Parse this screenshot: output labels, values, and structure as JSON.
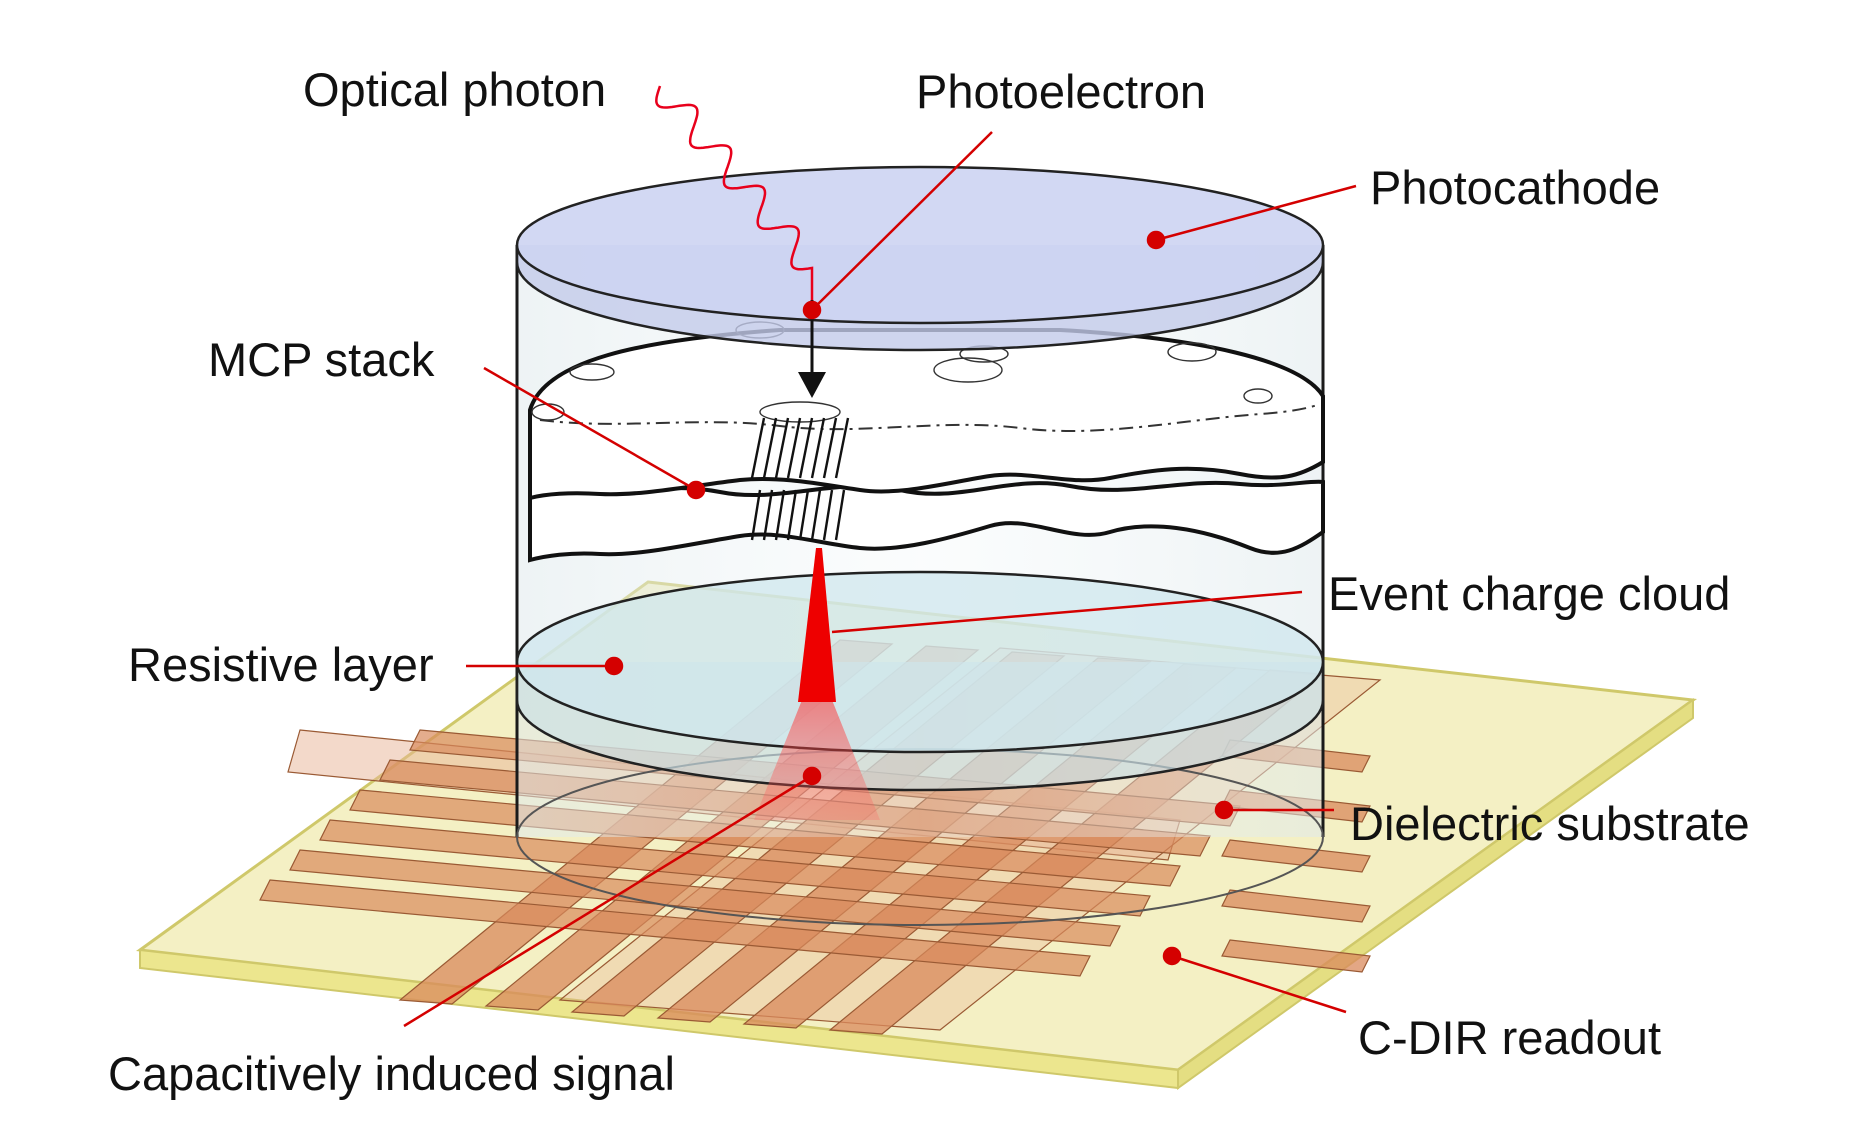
{
  "diagram": {
    "labels": {
      "optical_photon": "Optical photon",
      "photoelectron": "Photoelectron",
      "photocathode": "Photocathode",
      "mcp_stack": "MCP stack",
      "event_charge_cloud": "Event charge cloud",
      "resistive_layer": "Resistive  layer",
      "dielectric_substrate": "Dielectric substrate",
      "capacitively_induced_signal": "Capacitively  induced  signal",
      "cdir_readout": "C-DIR readout"
    },
    "colors": {
      "leader": "#d40000",
      "photon": "#e8001c",
      "substrate": "#f4f0c4",
      "substrate_edge": "#d6d27a",
      "strip": "#d98a5c",
      "strip_light": "#e8b495",
      "glass": "#c8e4ee",
      "photocathode": "#cbd3f2",
      "charge": "#ee0000"
    }
  }
}
